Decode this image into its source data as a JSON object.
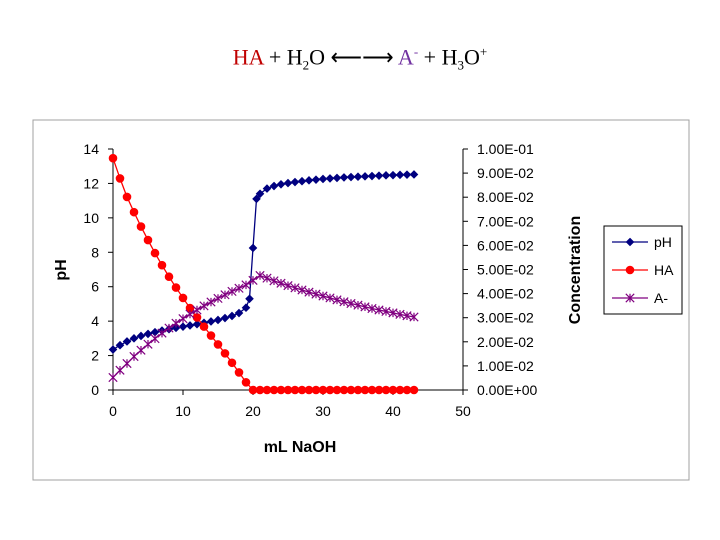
{
  "equation": {
    "ha": "HA",
    "plus1": "+",
    "h": "H",
    "h_sub": "2",
    "o": "O",
    "arrow": "⟵⟶",
    "a": "A",
    "a_sup": "-",
    "plus2": "+",
    "h3": "H",
    "h3_sub": "3",
    "o3": "O",
    "o3_sup": "+"
  },
  "chart_data": {
    "type": "scatter",
    "xlabel": "mL NaOH",
    "ylabel": "pH",
    "y2label": "Concentration",
    "xlim": [
      0,
      50
    ],
    "ylim": [
      0,
      14
    ],
    "y2lim": [
      0,
      0.1
    ],
    "xticks": [
      "0",
      "10",
      "20",
      "30",
      "40",
      "50"
    ],
    "yticks": [
      "0",
      "2",
      "4",
      "6",
      "8",
      "10",
      "12",
      "14"
    ],
    "y2ticks": [
      "0.00E+00",
      "1.00E-02",
      "2.00E-02",
      "3.00E-02",
      "4.00E-02",
      "5.00E-02",
      "6.00E-02",
      "7.00E-02",
      "8.00E-02",
      "9.00E-02",
      "1.00E-01"
    ],
    "legend_position": "right",
    "series": [
      {
        "name": "pH",
        "axis": "left",
        "color": "#000080",
        "marker": "diamond",
        "x": [
          0,
          1,
          2,
          3,
          4,
          5,
          6,
          7,
          8,
          9,
          10,
          11,
          12,
          13,
          14,
          15,
          16,
          17,
          18,
          19,
          19.5,
          20,
          20.5,
          21,
          22,
          23,
          24,
          25,
          26,
          27,
          28,
          29,
          30,
          31,
          32,
          33,
          34,
          35,
          36,
          37,
          38,
          39,
          40,
          41,
          42,
          43
        ],
        "y": [
          2.35,
          2.6,
          2.82,
          3.0,
          3.14,
          3.26,
          3.36,
          3.45,
          3.53,
          3.61,
          3.68,
          3.75,
          3.82,
          3.9,
          3.98,
          4.07,
          4.18,
          4.3,
          4.47,
          4.78,
          5.3,
          8.25,
          11.1,
          11.4,
          11.7,
          11.85,
          11.95,
          12.02,
          12.08,
          12.13,
          12.18,
          12.22,
          12.26,
          12.29,
          12.32,
          12.35,
          12.37,
          12.39,
          12.41,
          12.43,
          12.45,
          12.47,
          12.48,
          12.5,
          12.51,
          12.52
        ]
      },
      {
        "name": "HA",
        "axis": "right",
        "color": "#ff0000",
        "marker": "circle",
        "x": [
          0,
          1,
          2,
          3,
          4,
          5,
          6,
          7,
          8,
          9,
          10,
          11,
          12,
          13,
          14,
          15,
          16,
          17,
          18,
          19,
          20,
          21,
          22,
          23,
          24,
          25,
          26,
          27,
          28,
          29,
          30,
          31,
          32,
          33,
          34,
          35,
          36,
          37,
          38,
          39,
          40,
          41,
          42,
          43
        ],
        "y": [
          0.0962,
          0.0878,
          0.0801,
          0.0738,
          0.0678,
          0.0622,
          0.0568,
          0.0518,
          0.047,
          0.0425,
          0.0382,
          0.034,
          0.0301,
          0.0263,
          0.0226,
          0.0189,
          0.0152,
          0.0113,
          0.0073,
          0.0032,
          0,
          0,
          0,
          0,
          0,
          0,
          0,
          0,
          0,
          0,
          0,
          0,
          0,
          0,
          0,
          0,
          0,
          0,
          0,
          0,
          0,
          0,
          0,
          0
        ]
      },
      {
        "name": "A-",
        "axis": "right",
        "color": "#800080",
        "marker": "star",
        "x": [
          0,
          1,
          2,
          3,
          4,
          5,
          6,
          7,
          8,
          9,
          10,
          11,
          12,
          13,
          14,
          15,
          16,
          17,
          18,
          19,
          20,
          21,
          22,
          23,
          24,
          25,
          26,
          27,
          28,
          29,
          30,
          31,
          32,
          33,
          34,
          35,
          36,
          37,
          38,
          39,
          40,
          41,
          42,
          43
        ],
        "y": [
          0.0052,
          0.0082,
          0.011,
          0.0139,
          0.0165,
          0.019,
          0.0213,
          0.0236,
          0.0257,
          0.0277,
          0.0296,
          0.0315,
          0.0332,
          0.0349,
          0.0365,
          0.038,
          0.0395,
          0.0409,
          0.0422,
          0.0436,
          0.0455,
          0.0475,
          0.0464,
          0.0453,
          0.0443,
          0.0433,
          0.0424,
          0.0415,
          0.0406,
          0.0398,
          0.039,
          0.0382,
          0.0374,
          0.0366,
          0.0359,
          0.0352,
          0.0345,
          0.0338,
          0.0332,
          0.0326,
          0.032,
          0.0314,
          0.0308,
          0.0303
        ]
      }
    ]
  }
}
